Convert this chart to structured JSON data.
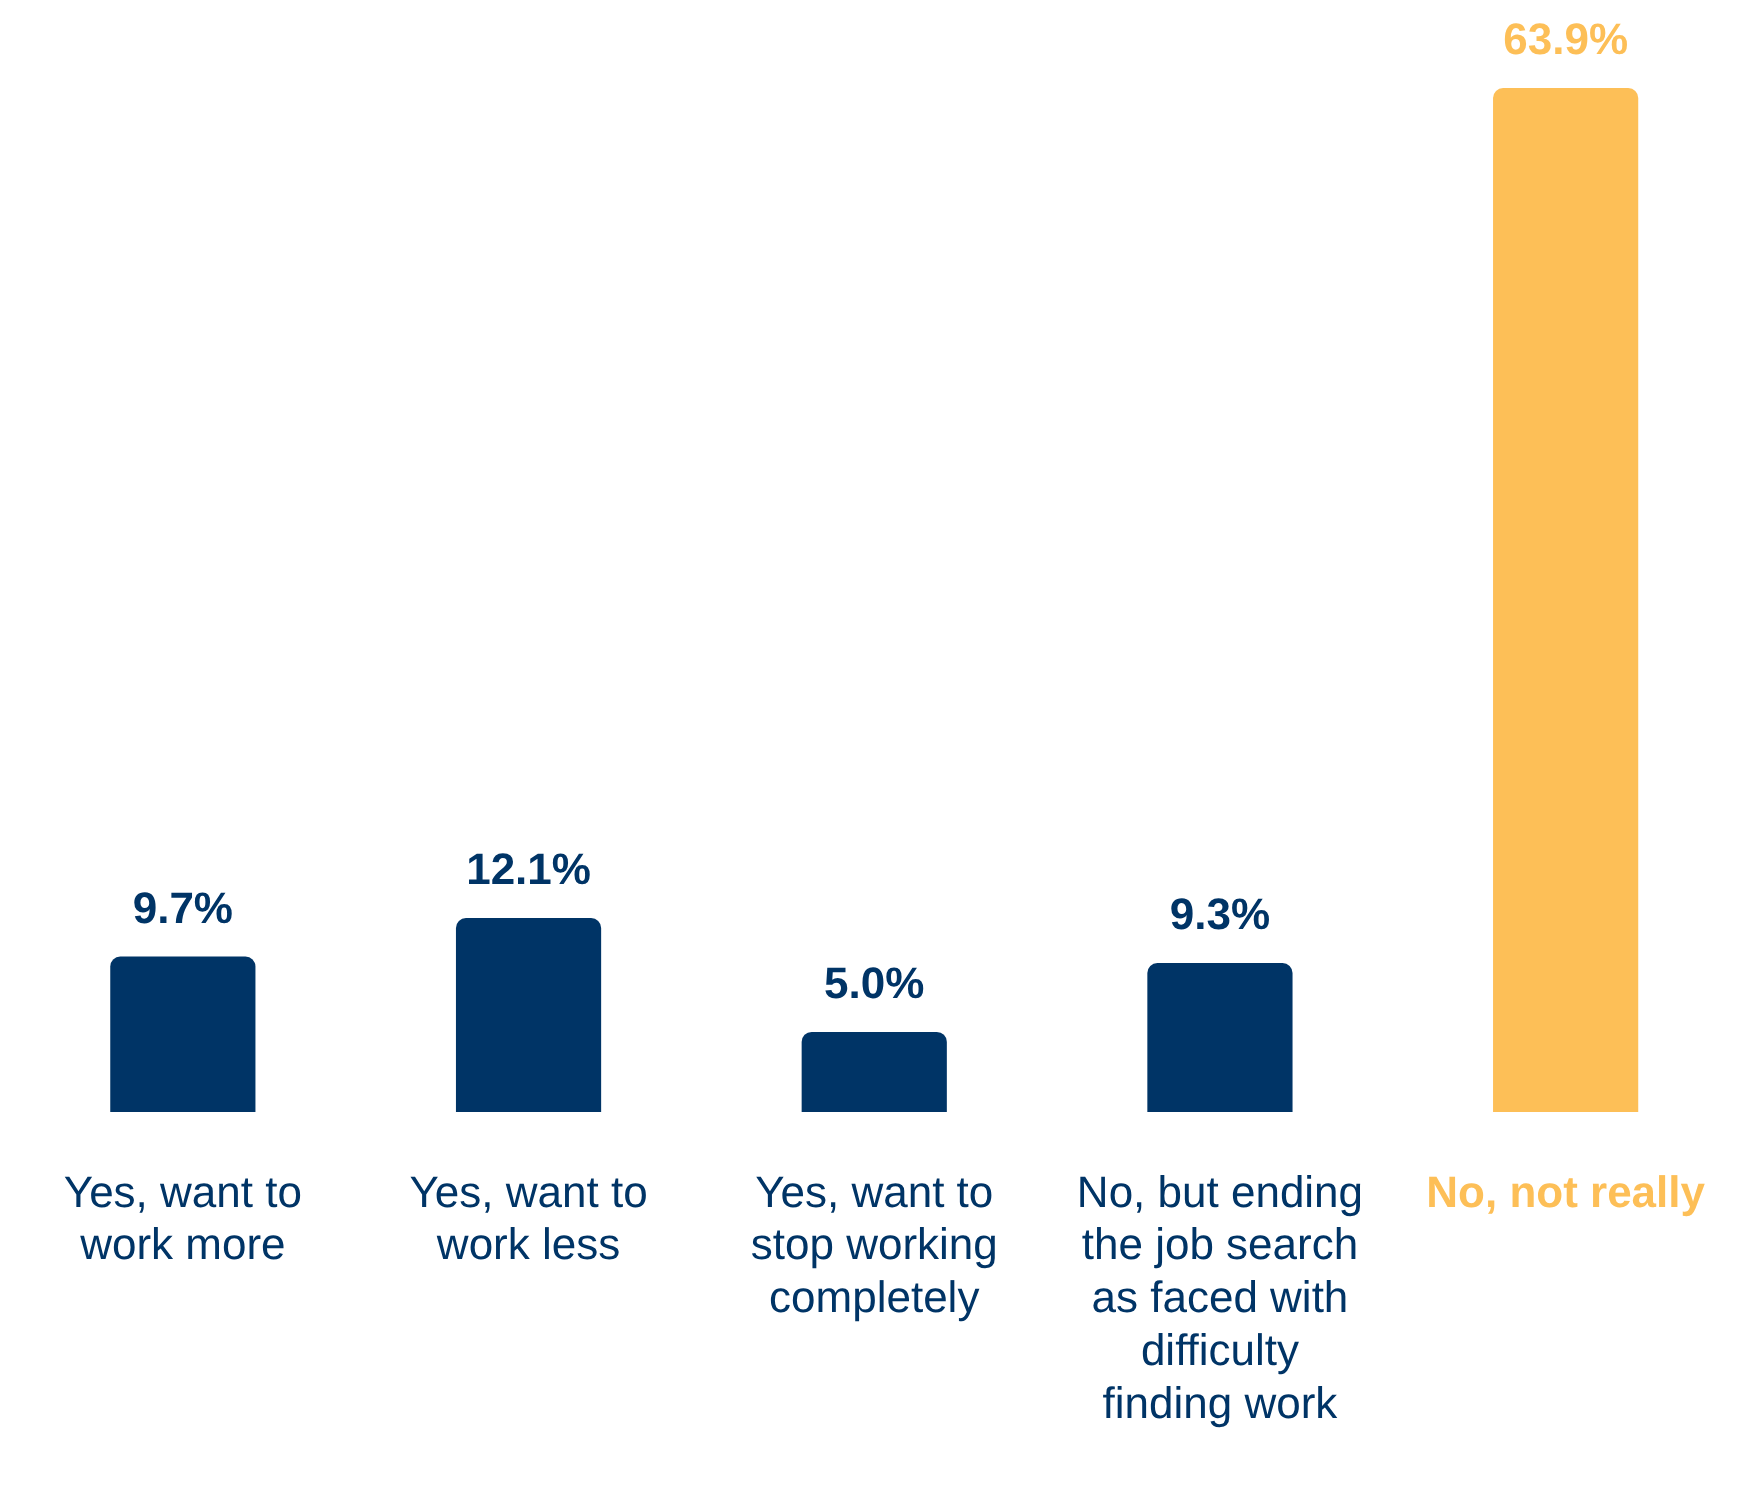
{
  "chart_data": {
    "type": "bar",
    "categories": [
      "Yes, want to work more",
      "Yes, want to work less",
      "Yes, want to stop working completely",
      "No, but ending the job search as faced with difficulty finding work",
      "No, not really"
    ],
    "values": [
      9.7,
      12.1,
      5.0,
      9.3,
      63.9
    ],
    "colors": [
      "#003466",
      "#003466",
      "#003466",
      "#003466",
      "#fdbf57"
    ],
    "value_labels": [
      "9.7%",
      "12.1%",
      "5.0%",
      "9.3%",
      "63.9%"
    ],
    "grid": false,
    "legend": false
  }
}
